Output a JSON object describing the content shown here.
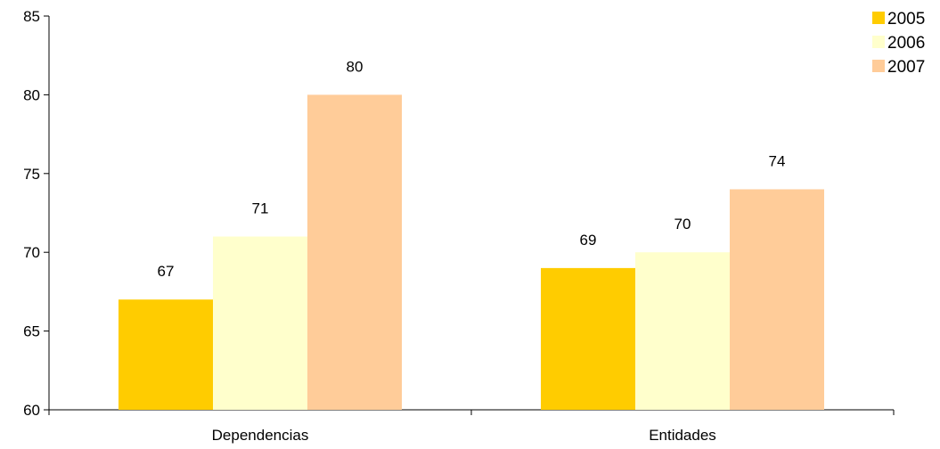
{
  "chart_data": {
    "type": "bar",
    "categories": [
      "Dependencias",
      "Entidades"
    ],
    "series": [
      {
        "name": "2005",
        "values": [
          67,
          69
        ],
        "color": "#FFCC00"
      },
      {
        "name": "2006",
        "values": [
          71,
          70
        ],
        "color": "#FFFFCC"
      },
      {
        "name": "2007",
        "values": [
          80,
          74
        ],
        "color": "#FFCC99"
      }
    ],
    "yticks": [
      "60",
      "65",
      "70",
      "75",
      "80",
      "85"
    ],
    "ylim": [
      60,
      85
    ],
    "grid": false,
    "legend_position": "top-right"
  }
}
